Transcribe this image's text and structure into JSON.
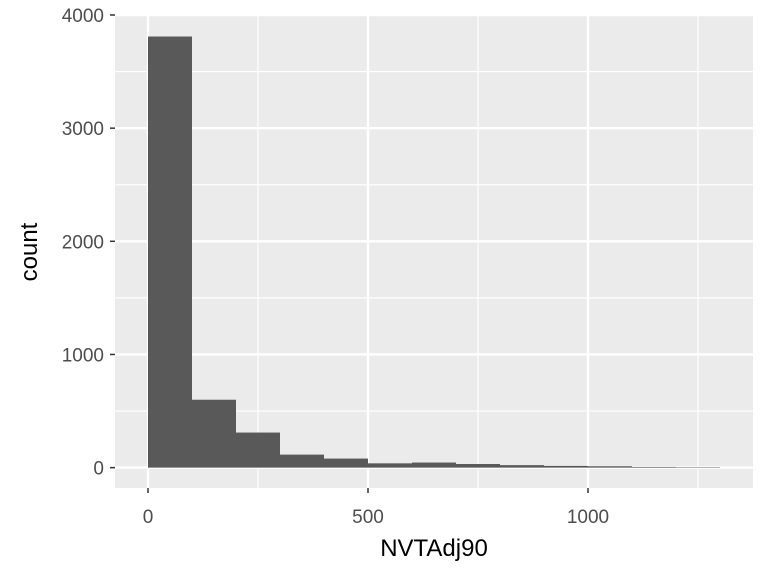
{
  "chart_data": {
    "type": "bar",
    "subtype": "histogram",
    "title": "",
    "xlabel": "NVTAdj90",
    "ylabel": "count",
    "bin_width": 100,
    "bins": [
      {
        "x_start": 0,
        "x_end": 100,
        "count": 3810
      },
      {
        "x_start": 100,
        "x_end": 200,
        "count": 600
      },
      {
        "x_start": 200,
        "x_end": 300,
        "count": 310
      },
      {
        "x_start": 300,
        "x_end": 400,
        "count": 115
      },
      {
        "x_start": 400,
        "x_end": 500,
        "count": 80
      },
      {
        "x_start": 500,
        "x_end": 600,
        "count": 38
      },
      {
        "x_start": 600,
        "x_end": 700,
        "count": 45
      },
      {
        "x_start": 700,
        "x_end": 800,
        "count": 32
      },
      {
        "x_start": 800,
        "x_end": 900,
        "count": 22
      },
      {
        "x_start": 900,
        "x_end": 1000,
        "count": 15
      },
      {
        "x_start": 1000,
        "x_end": 1100,
        "count": 12
      },
      {
        "x_start": 1100,
        "x_end": 1200,
        "count": 6
      },
      {
        "x_start": 1200,
        "x_end": 1300,
        "count": 4
      }
    ],
    "xlim": [
      -75,
      1375
    ],
    "ylim": [
      -180,
      4000
    ],
    "x_ticks": [
      0,
      500,
      1000
    ],
    "x_tick_labels": [
      "0",
      "500",
      "1000"
    ],
    "x_minor_ticks": [
      250,
      750,
      1250
    ],
    "y_ticks": [
      0,
      1000,
      2000,
      3000,
      4000
    ],
    "y_tick_labels": [
      "0",
      "1000",
      "2000",
      "3000",
      "4000"
    ],
    "y_minor_ticks": [
      500,
      1500,
      2500,
      3500
    ],
    "grid": true,
    "legend": "none",
    "colors": {
      "bar_fill": "#595959",
      "panel_background": "#ebebeb",
      "grid_line": "#ffffff",
      "tick_mark": "#333333"
    }
  }
}
